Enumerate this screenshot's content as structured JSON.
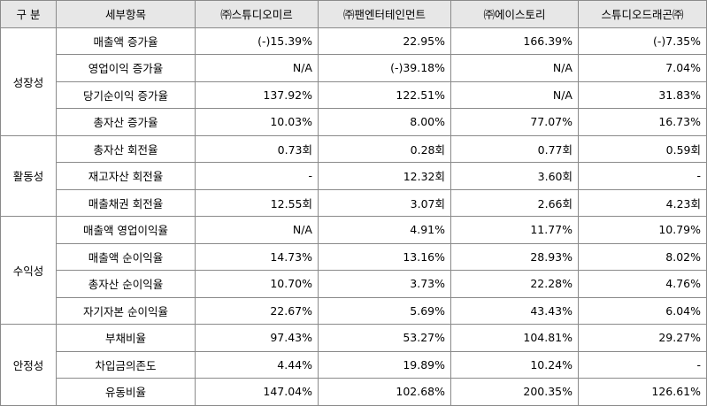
{
  "header": {
    "category": "구 분",
    "item": "세부항목",
    "companies": [
      "㈜스튜디오미르",
      "㈜팬엔터테인먼트",
      "㈜에이스토리",
      "스튜디오드래곤㈜"
    ]
  },
  "groups": [
    {
      "name": "성장성",
      "rows": [
        {
          "item": "매출액 증가율",
          "values": [
            "(-)15.39%",
            "22.95%",
            "166.39%",
            "(-)7.35%"
          ]
        },
        {
          "item": "영업이익 증가율",
          "values": [
            "N/A",
            "(-)39.18%",
            "N/A",
            "7.04%"
          ]
        },
        {
          "item": "당기순이익 증가율",
          "values": [
            "137.92%",
            "122.51%",
            "N/A",
            "31.83%"
          ]
        },
        {
          "item": "총자산 증가율",
          "values": [
            "10.03%",
            "8.00%",
            "77.07%",
            "16.73%"
          ]
        }
      ]
    },
    {
      "name": "활동성",
      "rows": [
        {
          "item": "총자산 회전율",
          "values": [
            "0.73회",
            "0.28회",
            "0.77회",
            "0.59회"
          ]
        },
        {
          "item": "재고자산 회전율",
          "values": [
            "-",
            "12.32회",
            "3.60회",
            "-"
          ]
        },
        {
          "item": "매출채권 회전율",
          "values": [
            "12.55회",
            "3.07회",
            "2.66회",
            "4.23회"
          ]
        }
      ]
    },
    {
      "name": "수익성",
      "rows": [
        {
          "item": "매출액 영업이익율",
          "values": [
            "N/A",
            "4.91%",
            "11.77%",
            "10.79%"
          ]
        },
        {
          "item": "매출액 순이익율",
          "values": [
            "14.73%",
            "13.16%",
            "28.93%",
            "8.02%"
          ]
        },
        {
          "item": "총자산 순이익율",
          "values": [
            "10.70%",
            "3.73%",
            "22.28%",
            "4.76%"
          ]
        },
        {
          "item": "자기자본 순이익율",
          "values": [
            "22.67%",
            "5.69%",
            "43.43%",
            "6.04%"
          ]
        }
      ]
    },
    {
      "name": "안정성",
      "rows": [
        {
          "item": "부채비율",
          "values": [
            "97.43%",
            "53.27%",
            "104.81%",
            "29.27%"
          ]
        },
        {
          "item": "차입금의존도",
          "values": [
            "4.44%",
            "19.89%",
            "10.24%",
            "-"
          ]
        },
        {
          "item": "유동비율",
          "values": [
            "147.04%",
            "102.68%",
            "200.35%",
            "126.61%"
          ]
        }
      ]
    }
  ]
}
